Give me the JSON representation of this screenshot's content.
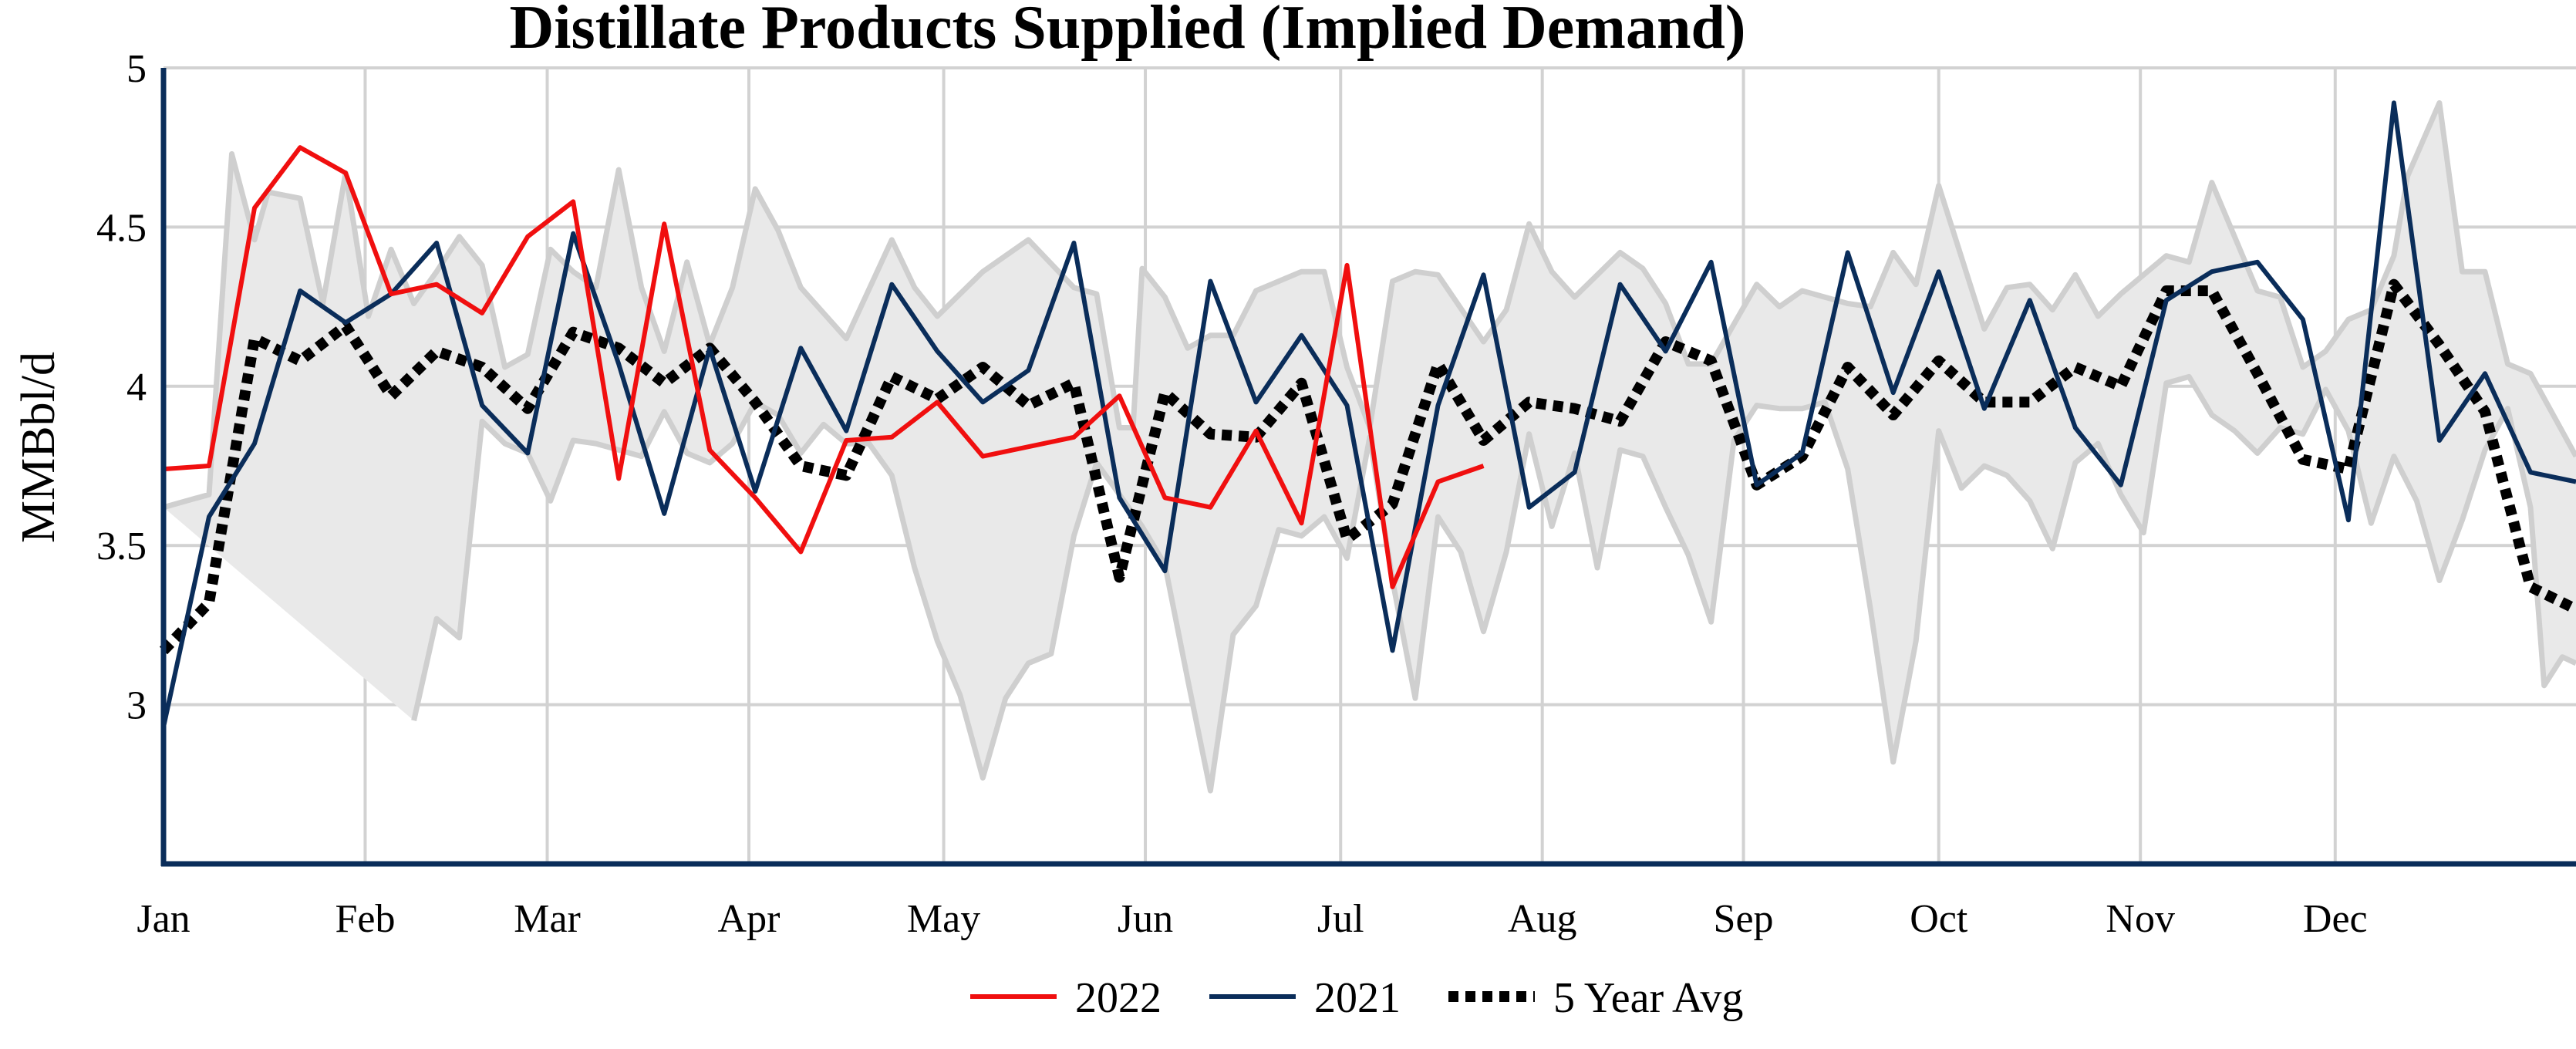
{
  "chart_data": {
    "type": "line",
    "title": "Distillate Products Supplied (Implied Demand)",
    "xlabel": "",
    "ylabel": "MMBbl/d",
    "x_unit": "week of year",
    "xlim": [
      0,
      53
    ],
    "ylim": [
      2.5,
      5.0
    ],
    "yticks": [
      3,
      3.5,
      4,
      4.5,
      5
    ],
    "ytick_labels": [
      "3",
      "3.5",
      "4",
      "4.5",
      "5"
    ],
    "month_labels": [
      "Jan",
      "Feb",
      "Mar",
      "Apr",
      "May",
      "Jun",
      "Jul",
      "Aug",
      "Sep",
      "Oct",
      "Nov",
      "Dec"
    ],
    "month_weeks": [
      0,
      4.43,
      8.43,
      12.86,
      17.14,
      21.57,
      25.86,
      30.29,
      34.71,
      39,
      43.43,
      47.71
    ],
    "grid": true,
    "legend_position": "bottom",
    "range_band": {
      "upper_x": [
        0,
        1,
        1.5,
        2,
        2.3,
        3,
        3.5,
        4,
        4.5,
        5,
        5.5,
        6,
        6.5,
        7,
        7.5,
        8,
        8.5,
        9,
        9.5,
        10,
        10.5,
        11,
        11.5,
        12,
        12.5,
        13,
        13.5,
        14,
        15,
        16,
        16.5,
        17,
        18,
        19,
        20,
        20.5,
        21,
        21.3,
        21.5,
        22,
        22.5,
        23,
        23.5,
        24,
        24.5,
        25,
        25.5,
        26,
        26.5,
        27,
        27.5,
        28,
        29,
        29.5,
        30,
        30.5,
        31,
        32,
        32.5,
        33,
        33.5,
        34,
        35,
        35.5,
        36,
        37,
        37.5,
        38,
        38.5,
        39,
        40,
        40.5,
        41,
        41.5,
        42,
        42.5,
        43,
        44,
        44.5,
        45,
        46,
        46.5,
        47,
        47.5,
        48,
        48.5,
        49,
        49.3,
        50,
        50.5,
        51,
        51.5,
        52,
        53
      ],
      "upper_y": [
        3.62,
        3.66,
        4.73,
        4.46,
        4.61,
        4.59,
        4.26,
        4.67,
        4.22,
        4.43,
        4.26,
        4.36,
        4.47,
        4.38,
        4.06,
        4.1,
        4.43,
        4.36,
        4.31,
        4.68,
        4.31,
        4.11,
        4.39,
        4.13,
        4.31,
        4.62,
        4.49,
        4.31,
        4.15,
        4.46,
        4.31,
        4.22,
        4.36,
        4.46,
        4.31,
        4.29,
        3.87,
        3.87,
        4.37,
        4.28,
        4.12,
        4.16,
        4.16,
        4.3,
        4.33,
        4.36,
        4.36,
        4.06,
        3.87,
        4.33,
        4.36,
        4.35,
        4.14,
        4.24,
        4.51,
        4.36,
        4.28,
        4.42,
        4.37,
        4.26,
        4.07,
        4.07,
        4.32,
        4.25,
        4.3,
        4.26,
        4.25,
        4.42,
        4.32,
        4.63,
        4.18,
        4.31,
        4.32,
        4.24,
        4.35,
        4.22,
        4.29,
        4.41,
        4.39,
        4.64,
        4.3,
        4.28,
        4.06,
        4.11,
        4.21,
        4.24,
        4.41,
        4.66,
        4.89,
        4.36,
        4.36,
        4.07,
        4.04,
        3.78
      ],
      "lower_x": [
        53,
        52.7,
        52.3,
        52,
        51.5,
        51,
        50.5,
        50,
        49.5,
        49,
        48.5,
        48,
        47.5,
        47,
        46.5,
        46,
        45.5,
        45,
        44.5,
        44,
        43.5,
        43,
        42.5,
        42,
        41.5,
        41,
        40.5,
        40,
        39.5,
        39,
        38.5,
        38,
        37.5,
        37,
        36.5,
        36,
        35.5,
        35,
        34.5,
        34,
        33.5,
        33,
        32.5,
        32,
        31.5,
        31,
        30.5,
        30,
        29.5,
        29,
        28.5,
        28,
        27.5,
        27,
        26.5,
        26,
        25.5,
        25,
        24.5,
        24,
        23.5,
        23,
        22.5,
        22,
        21.5,
        21,
        20.5,
        20,
        19.5,
        19,
        18.5,
        18,
        17.5,
        17,
        16.5,
        16,
        15.5,
        15,
        14.5,
        14,
        13.5,
        13,
        12.5,
        12,
        11.5,
        11,
        10.5,
        10,
        9.5,
        9,
        8.5,
        8,
        7.5,
        7,
        6.5,
        6,
        5.5,
        5,
        4.5,
        4,
        3.5,
        3,
        2.5,
        2,
        1.5,
        1,
        0.5,
        0
      ],
      "lower_y": [
        3.13,
        3.15,
        3.06,
        3.62,
        3.93,
        3.8,
        3.58,
        3.39,
        3.64,
        3.78,
        3.57,
        3.86,
        3.99,
        3.85,
        3.87,
        3.79,
        3.86,
        3.91,
        4.03,
        4.01,
        3.54,
        3.66,
        3.82,
        3.76,
        3.49,
        3.64,
        3.72,
        3.75,
        3.68,
        3.86,
        3.2,
        2.82,
        3.3,
        3.74,
        3.95,
        3.93,
        3.93,
        3.94,
        3.83,
        3.26,
        3.47,
        3.62,
        3.78,
        3.8,
        3.43,
        3.79,
        3.56,
        3.85,
        3.48,
        3.23,
        3.48,
        3.59,
        3.02,
        3.39,
        3.84,
        3.46,
        3.59,
        3.53,
        3.55,
        3.31,
        3.22,
        2.73,
        3.08,
        3.44,
        3.56,
        3.66,
        3.76,
        3.53,
        3.16,
        3.13,
        3.02,
        2.77,
        3.03,
        3.2,
        3.43,
        3.72,
        3.82,
        3.82,
        3.88,
        3.79,
        3.91,
        3.95,
        3.82,
        3.76,
        3.79,
        3.92,
        3.78,
        3.8,
        3.82,
        3.83,
        3.64,
        3.79,
        3.82,
        3.89,
        3.21,
        3.27,
        2.95
      ]
    },
    "series": [
      {
        "name": "2022",
        "color": "#f00f0f",
        "style": "solid",
        "x": [
          0,
          1,
          2,
          3,
          4,
          5,
          6,
          7,
          8,
          9,
          10,
          11,
          12,
          13,
          14,
          15,
          16,
          17,
          18,
          19,
          20,
          21,
          22,
          23,
          24,
          25,
          26,
          27,
          28,
          29
        ],
        "y": [
          3.74,
          3.75,
          4.56,
          4.75,
          4.67,
          4.29,
          4.32,
          4.23,
          4.47,
          4.58,
          3.71,
          4.51,
          3.8,
          3.65,
          3.48,
          3.83,
          3.84,
          3.95,
          3.78,
          3.81,
          3.84,
          3.97,
          3.65,
          3.62,
          3.86,
          3.57,
          4.38,
          3.37,
          3.7,
          3.75
        ]
      },
      {
        "name": "2021",
        "color": "#0a2d5a",
        "style": "solid",
        "x": [
          0,
          1,
          2,
          3,
          4,
          5,
          6,
          7,
          8,
          9,
          10,
          11,
          12,
          13,
          14,
          15,
          16,
          17,
          18,
          19,
          20,
          21,
          22,
          23,
          24,
          25,
          26,
          27,
          28,
          29,
          30,
          31,
          32,
          33,
          34,
          35,
          36,
          37,
          38,
          39,
          40,
          41,
          42,
          43,
          44,
          45,
          46,
          47,
          48,
          49,
          50,
          51,
          52,
          53
        ],
        "y": [
          2.93,
          3.59,
          3.82,
          4.3,
          4.2,
          4.29,
          4.45,
          3.94,
          3.79,
          4.48,
          4.07,
          3.6,
          4.12,
          3.67,
          4.12,
          3.86,
          4.32,
          4.11,
          3.95,
          4.05,
          4.45,
          3.65,
          3.42,
          4.33,
          3.95,
          4.16,
          3.94,
          3.17,
          3.94,
          4.35,
          3.62,
          3.73,
          4.32,
          4.11,
          4.39,
          3.69,
          3.79,
          4.42,
          3.98,
          4.36,
          3.93,
          4.27,
          3.87,
          3.69,
          4.27,
          4.36,
          4.39,
          4.21,
          3.58,
          4.89,
          3.83,
          4.04,
          3.73,
          3.7
        ]
      },
      {
        "name": "5 Year Avg",
        "color": "#000000",
        "style": "dotted",
        "x": [
          0,
          1,
          2,
          3,
          4,
          5,
          6,
          7,
          8,
          9,
          10,
          11,
          12,
          13,
          14,
          15,
          16,
          17,
          18,
          19,
          20,
          21,
          22,
          23,
          24,
          25,
          26,
          27,
          28,
          29,
          30,
          31,
          32,
          33,
          34,
          35,
          36,
          37,
          38,
          39,
          40,
          41,
          42,
          43,
          44,
          45,
          46,
          47,
          48,
          49,
          50,
          51,
          52,
          53
        ],
        "y": [
          3.17,
          3.32,
          4.15,
          4.08,
          4.19,
          3.97,
          4.11,
          4.06,
          3.93,
          4.17,
          4.12,
          4.01,
          4.12,
          3.95,
          3.75,
          3.72,
          4.03,
          3.96,
          4.06,
          3.94,
          4.01,
          3.4,
          3.98,
          3.85,
          3.84,
          4.01,
          3.52,
          3.63,
          4.07,
          3.83,
          3.95,
          3.93,
          3.89,
          4.14,
          4.08,
          3.69,
          3.78,
          4.06,
          3.91,
          4.08,
          3.95,
          3.95,
          4.06,
          4.0,
          4.3,
          4.3,
          4.04,
          3.77,
          3.74,
          4.32,
          4.13,
          3.92,
          3.37,
          3.3
        ]
      }
    ]
  }
}
